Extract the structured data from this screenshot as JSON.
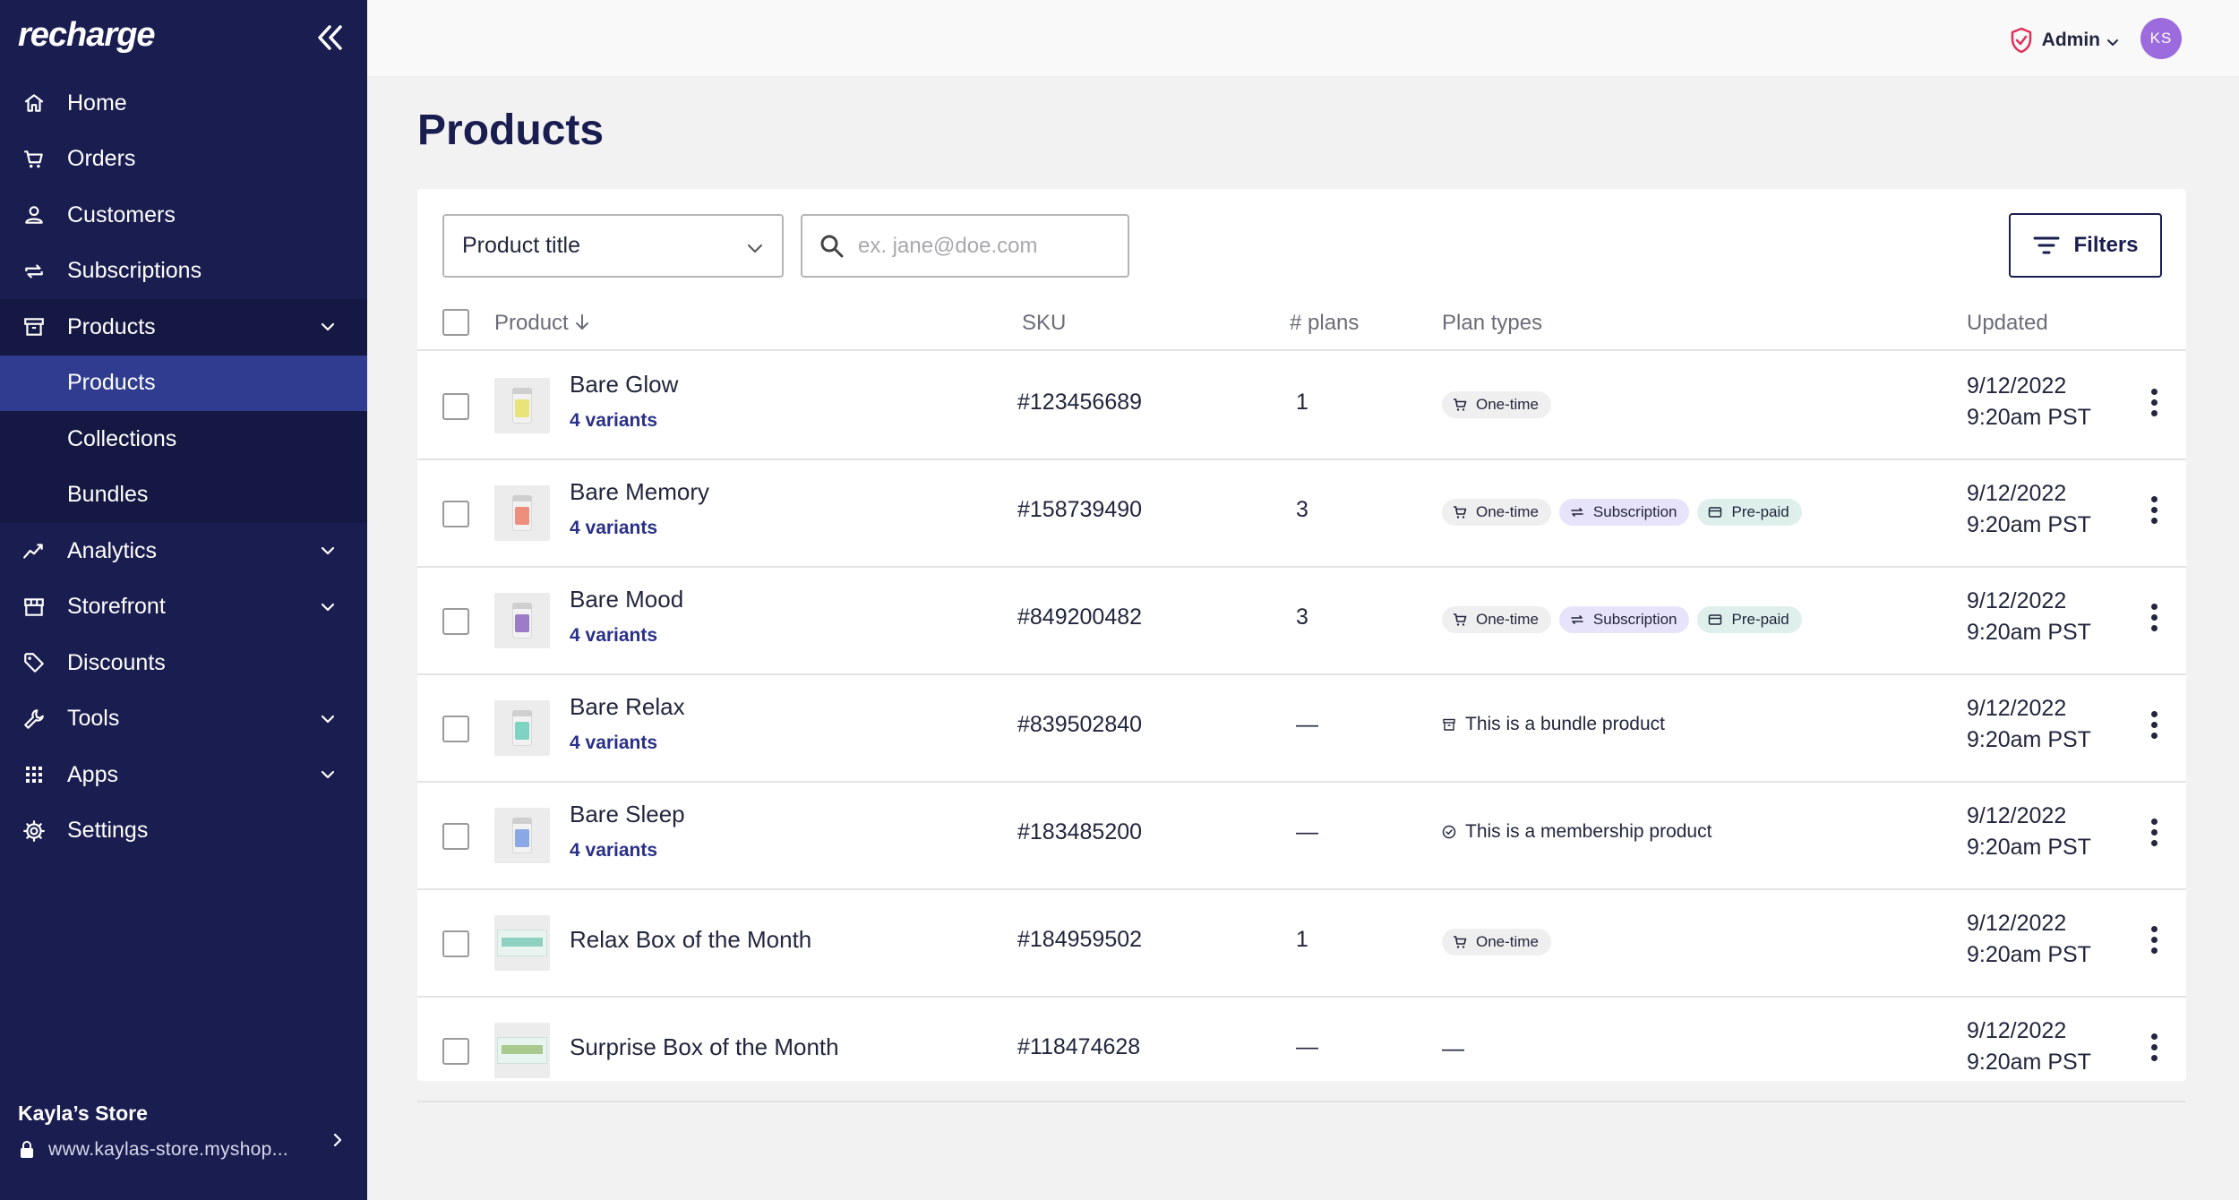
{
  "sidebar": {
    "logo": "recharge",
    "nav": [
      {
        "label": "Home",
        "icon": "home-icon"
      },
      {
        "label": "Orders",
        "icon": "cart-icon"
      },
      {
        "label": "Customers",
        "icon": "user-icon"
      },
      {
        "label": "Subscriptions",
        "icon": "repeat-icon"
      },
      {
        "label": "Products",
        "icon": "archive-icon"
      },
      {
        "label": "Analytics",
        "icon": "trend-icon"
      },
      {
        "label": "Storefront",
        "icon": "storefront-icon"
      },
      {
        "label": "Discounts",
        "icon": "tag-icon"
      },
      {
        "label": "Tools",
        "icon": "wrench-icon"
      },
      {
        "label": "Apps",
        "icon": "grid-icon"
      },
      {
        "label": "Settings",
        "icon": "gear-icon"
      }
    ],
    "products_sub": [
      {
        "label": "Products",
        "active": true
      },
      {
        "label": "Collections",
        "active": false
      },
      {
        "label": "Bundles",
        "active": false
      }
    ],
    "store": {
      "name": "Kayla’s Store",
      "url": "www.kaylas-store.myshop..."
    }
  },
  "topbar": {
    "role": "Admin",
    "avatar_initials": "KS"
  },
  "page": {
    "title": "Products"
  },
  "toolbar": {
    "select_value": "Product title",
    "search_placeholder": "ex. jane@doe.com",
    "filters_label": "Filters"
  },
  "table": {
    "headers": {
      "product": "Product",
      "sku": "SKU",
      "plans": "# plans",
      "plan_types": "Plan types",
      "updated": "Updated"
    },
    "rows": [
      {
        "name": "Bare Glow",
        "variants": "4 variants",
        "sku": "#123456689",
        "plans": "1",
        "tags": [
          "One-time"
        ],
        "note": "",
        "updated_date": "9/12/2022",
        "updated_time": "9:20am PST",
        "thumb_color": "#e9e47a"
      },
      {
        "name": "Bare Memory",
        "variants": "4 variants",
        "sku": "#158739490",
        "plans": "3",
        "tags": [
          "One-time",
          "Subscription",
          "Pre-paid"
        ],
        "note": "",
        "updated_date": "9/12/2022",
        "updated_time": "9:20am PST",
        "thumb_color": "#ee8e7c"
      },
      {
        "name": "Bare Mood",
        "variants": "4 variants",
        "sku": "#849200482",
        "plans": "3",
        "tags": [
          "One-time",
          "Subscription",
          "Pre-paid"
        ],
        "note": "",
        "updated_date": "9/12/2022",
        "updated_time": "9:20am PST",
        "thumb_color": "#9c7cc8"
      },
      {
        "name": "Bare Relax",
        "variants": "4 variants",
        "sku": "#839502840",
        "plans": "—",
        "tags": [],
        "note": "This is a bundle product",
        "updated_date": "9/12/2022",
        "updated_time": "9:20am PST",
        "thumb_color": "#7ed3c3"
      },
      {
        "name": "Bare Sleep",
        "variants": "4 variants",
        "sku": "#183485200",
        "plans": "—",
        "tags": [],
        "note": "This is a membership product",
        "updated_date": "9/12/2022",
        "updated_time": "9:20am PST",
        "thumb_color": "#8aa8e6"
      },
      {
        "name": "Relax Box of the Month",
        "variants": "",
        "sku": "#184959502",
        "plans": "1",
        "tags": [
          "One-time"
        ],
        "note": "",
        "updated_date": "9/12/2022",
        "updated_time": "9:20am PST",
        "thumb_color": "#8fd1c0"
      },
      {
        "name": "Surprise Box of the Month",
        "variants": "",
        "sku": "#118474628",
        "plans": "—",
        "tags": [],
        "note": "—",
        "updated_date": "9/12/2022",
        "updated_time": "9:20am PST",
        "thumb_color": "#a9c98e"
      }
    ]
  },
  "colors": {
    "sidebar_bg": "#1a1d4f",
    "active_nav": "#2f3c8f",
    "accent": "#2a3088",
    "avatar": "#9c6cde"
  }
}
